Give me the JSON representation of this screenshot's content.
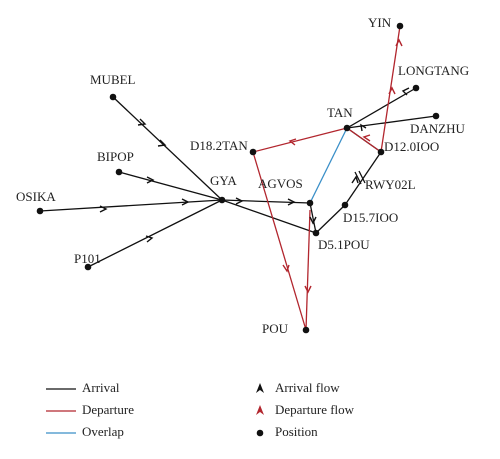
{
  "nodes": [
    {
      "label": "YIN"
    },
    {
      "label": "LONGTANG"
    },
    {
      "label": "TAN"
    },
    {
      "label": "DANZHU"
    },
    {
      "label": "D12.0IOO"
    },
    {
      "label": "MUBEL"
    },
    {
      "label": "D18.2TAN"
    },
    {
      "label": "BIPOP"
    },
    {
      "label": "GYA"
    },
    {
      "label": "AGVOS"
    },
    {
      "label": "RWY02L"
    },
    {
      "label": "OSIKA"
    },
    {
      "label": "D15.7IOO"
    },
    {
      "label": "D5.1POU"
    },
    {
      "label": "P101"
    },
    {
      "label": "POU"
    }
  ],
  "legend": [
    {
      "label": "Arrival"
    },
    {
      "label": "Departure"
    },
    {
      "label": "Overlap"
    },
    {
      "label": "Arrival flow"
    },
    {
      "label": "Departure flow"
    },
    {
      "label": "Position"
    }
  ]
}
